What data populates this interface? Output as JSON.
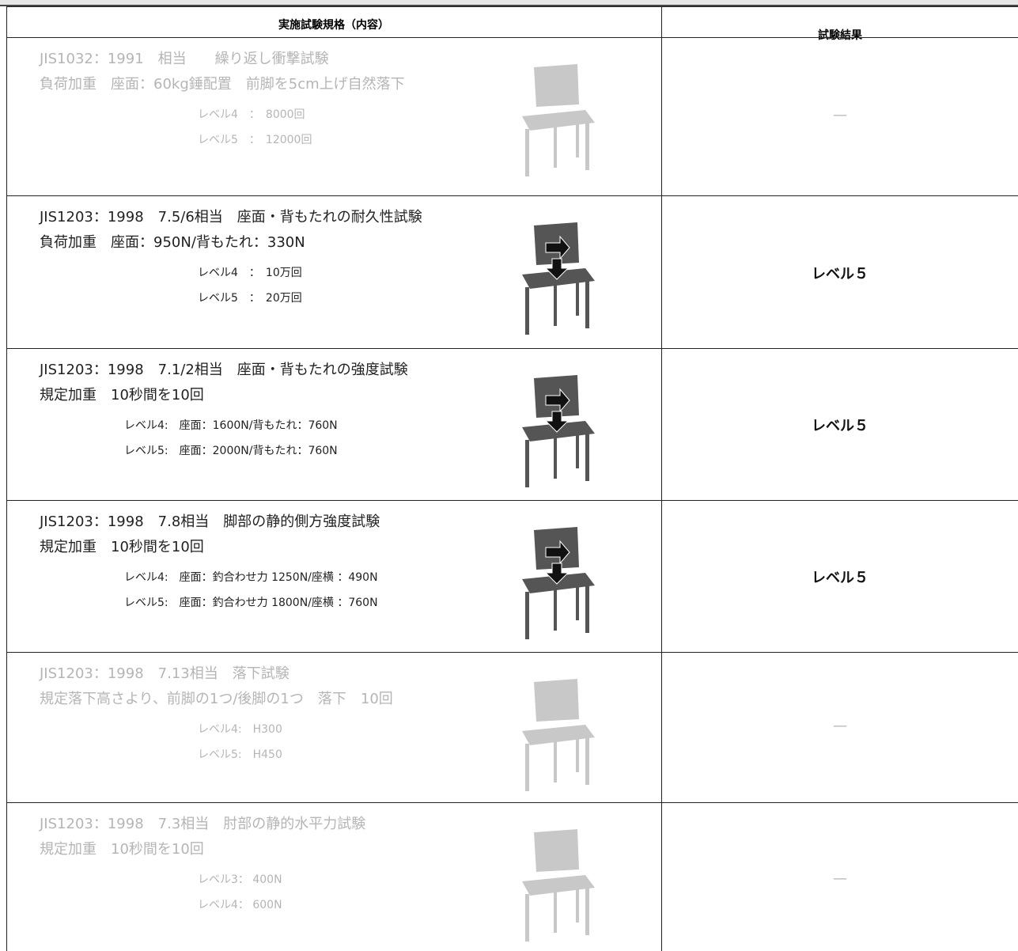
{
  "header": {
    "spec": "実施試験規格（内容）",
    "result": "試験結果"
  },
  "rows": [
    {
      "lines": [
        "JIS1032：1991　相当　　繰り返し衝撃試験",
        "負荷加重　座面：60kg錘配置　前脚を5cm上げ自然落下"
      ],
      "levels": [
        "レベル4　：　8000回",
        "レベル5　：　12000回"
      ],
      "result": "—"
    },
    {
      "lines": [
        "JIS1203：1998　7.5/6相当　座面・背もたれの耐久性試験",
        "負荷加重　座面：950N/背もたれ：330N"
      ],
      "levels": [
        "レベル4　：　10万回",
        "レベル5　：　20万回"
      ],
      "result": "レベル５"
    },
    {
      "lines": [
        "JIS1203：1998　7.1/2相当　座面・背もたれの強度試験",
        "規定加重　10秒間を10回"
      ],
      "levels": [
        "レベル4:　座面：1600N/背もたれ：760N",
        "レベル5:　座面：2000N/背もたれ：760N"
      ],
      "result": "レベル５"
    },
    {
      "lines": [
        "JIS1203：1998　7.8相当　脚部の静的側方強度試験",
        "規定加重　10秒間を10回"
      ],
      "levels": [
        "レベル4:　座面：釣合わせ力 1250N/座横 ：490N",
        "レベル5:　座面：釣合わせ力 1800N/座横 ：760N"
      ],
      "result": "レベル５"
    },
    {
      "lines": [
        "JIS1203：1998　7.13相当　落下試験",
        "規定落下高さより、前脚の1つ/後脚の1つ　落下　10回"
      ],
      "levels": [
        "レベル4:　H300",
        "レベル5:　H450"
      ],
      "result": "—"
    },
    {
      "lines": [
        "JIS1203：1998　7.3相当　肘部の静的水平力試験",
        "規定加重　10秒間を10回"
      ],
      "levels": [
        "レベル3：  400N",
        "レベル4：  600N"
      ],
      "result": "—"
    }
  ]
}
